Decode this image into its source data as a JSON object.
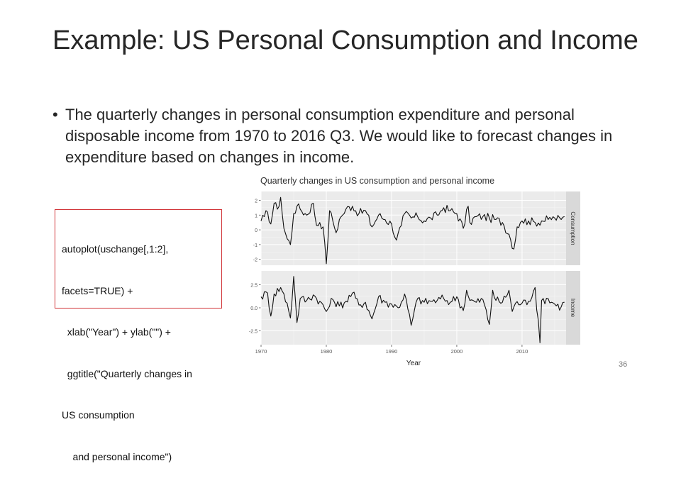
{
  "slide": {
    "title": "Example: US Personal Consumption and Income",
    "bullet": "The quarterly changes in personal consumption expenditure and personal disposable income from 1970 to 2016 Q3. We would like to forecast changes in expenditure based on changes in income.",
    "code_lines": [
      "autoplot(uschange[,1:2],",
      "facets=TRUE) +",
      "  xlab(\"Year\") + ylab(\"\") +",
      "  ggtitle(\"Quarterly changes in",
      "US consumption",
      "    and personal income\")"
    ],
    "page_number": "36"
  },
  "chart_data": {
    "type": "line",
    "title": "Quarterly changes in US consumption and personal income",
    "xlabel": "Year",
    "ylabel": "",
    "x_ticks": [
      1970,
      1980,
      1990,
      2000,
      2010
    ],
    "x_range": [
      1970,
      2016.75
    ],
    "panel_background": "#ebebeb",
    "strip_background": "#d9d9d9",
    "line_color": "#111111",
    "series": [
      {
        "name": "Consumption",
        "y_ticks": [
          -2,
          -1,
          0,
          1,
          2
        ],
        "y_tick_labels": [
          "-2",
          "-1",
          "0",
          "1",
          "2"
        ],
        "ylim": [
          -2.4,
          2.6
        ],
        "anchors": [
          [
            1970,
            0.6
          ],
          [
            1970.5,
            0.9
          ],
          [
            1971,
            1.2
          ],
          [
            1971.5,
            0.4
          ],
          [
            1972,
            1.8
          ],
          [
            1972.5,
            1.4
          ],
          [
            1973,
            2.2
          ],
          [
            1973.5,
            0.1
          ],
          [
            1974,
            -0.6
          ],
          [
            1974.5,
            -1.0
          ],
          [
            1975,
            1.1
          ],
          [
            1975.5,
            1.6
          ],
          [
            1976,
            1.4
          ],
          [
            1977,
            1.0
          ],
          [
            1978,
            1.8
          ],
          [
            1978.5,
            0.3
          ],
          [
            1979,
            0.5
          ],
          [
            1979.5,
            0.2
          ],
          [
            1980,
            -2.3
          ],
          [
            1980.5,
            1.3
          ],
          [
            1981,
            0.6
          ],
          [
            1981.5,
            -0.2
          ],
          [
            1982,
            0.7
          ],
          [
            1982.5,
            1.0
          ],
          [
            1983,
            1.4
          ],
          [
            1984,
            1.6
          ],
          [
            1985,
            1.1
          ],
          [
            1986,
            1.3
          ],
          [
            1987,
            0.2
          ],
          [
            1988,
            1.0
          ],
          [
            1989,
            0.7
          ],
          [
            1990,
            0.4
          ],
          [
            1990.75,
            -0.7
          ],
          [
            1991.5,
            0.3
          ],
          [
            1992,
            1.1
          ],
          [
            1993,
            0.8
          ],
          [
            1994,
            0.9
          ],
          [
            1995,
            0.6
          ],
          [
            1996,
            0.8
          ],
          [
            1997,
            1.0
          ],
          [
            1998,
            1.5
          ],
          [
            1999,
            1.3
          ],
          [
            2000,
            1.1
          ],
          [
            2001,
            0.1
          ],
          [
            2001.75,
            1.6
          ],
          [
            2002,
            0.5
          ],
          [
            2003,
            0.9
          ],
          [
            2004,
            0.9
          ],
          [
            2005,
            0.8
          ],
          [
            2006,
            0.7
          ],
          [
            2007,
            0.5
          ],
          [
            2008,
            -0.3
          ],
          [
            2008.75,
            -1.3
          ],
          [
            2009.25,
            0.2
          ],
          [
            2009.75,
            0.5
          ],
          [
            2010,
            0.6
          ],
          [
            2011,
            0.6
          ],
          [
            2012,
            0.5
          ],
          [
            2013,
            0.6
          ],
          [
            2014,
            0.7
          ],
          [
            2015,
            0.8
          ],
          [
            2016,
            0.7
          ],
          [
            2016.5,
            0.9
          ]
        ]
      },
      {
        "name": "Income",
        "y_ticks": [
          -2.5,
          0.0,
          2.5
        ],
        "y_tick_labels": [
          "-2.5",
          "0.0",
          "2.5"
        ],
        "ylim": [
          -4.0,
          4.0
        ],
        "anchors": [
          [
            1970,
            1.2
          ],
          [
            1971,
            1.6
          ],
          [
            1971.5,
            -0.9
          ],
          [
            1972,
            1.5
          ],
          [
            1973,
            2.2
          ],
          [
            1974,
            0.5
          ],
          [
            1974.5,
            -1.1
          ],
          [
            1975,
            3.4
          ],
          [
            1975.5,
            -1.6
          ],
          [
            1976,
            1.0
          ],
          [
            1977,
            0.8
          ],
          [
            1978,
            1.4
          ],
          [
            1979,
            0.7
          ],
          [
            1980,
            -0.4
          ],
          [
            1981,
            0.9
          ],
          [
            1982,
            0.2
          ],
          [
            1983,
            0.7
          ],
          [
            1984,
            1.6
          ],
          [
            1985,
            0.3
          ],
          [
            1986,
            0.6
          ],
          [
            1987,
            -1.2
          ],
          [
            1988,
            1.2
          ],
          [
            1989,
            0.6
          ],
          [
            1990,
            0.4
          ],
          [
            1991,
            0.0
          ],
          [
            1992,
            1.5
          ],
          [
            1993,
            -1.9
          ],
          [
            1994,
            1.0
          ],
          [
            1995,
            0.6
          ],
          [
            1996,
            0.7
          ],
          [
            1997,
            0.8
          ],
          [
            1998,
            1.0
          ],
          [
            1999,
            0.6
          ],
          [
            2000,
            1.2
          ],
          [
            2001,
            -0.3
          ],
          [
            2001.5,
            1.9
          ],
          [
            2002,
            0.8
          ],
          [
            2003,
            0.6
          ],
          [
            2004,
            0.9
          ],
          [
            2005,
            -1.8
          ],
          [
            2005.5,
            1.9
          ],
          [
            2006,
            0.8
          ],
          [
            2007,
            0.6
          ],
          [
            2008,
            1.9
          ],
          [
            2008.5,
            -0.4
          ],
          [
            2009,
            0.5
          ],
          [
            2010,
            0.5
          ],
          [
            2011,
            0.7
          ],
          [
            2012,
            2.2
          ],
          [
            2012.75,
            -3.8
          ],
          [
            2013,
            0.8
          ],
          [
            2014,
            1.0
          ],
          [
            2015,
            0.4
          ],
          [
            2016,
            0.1
          ],
          [
            2016.5,
            0.6
          ]
        ]
      }
    ]
  }
}
